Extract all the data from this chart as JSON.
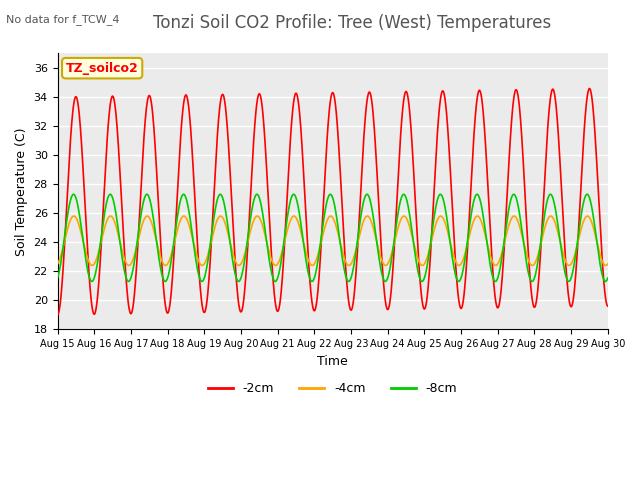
{
  "title": "Tonzi Soil CO2 Profile: Tree (West) Temperatures",
  "subtitle": "No data for f_TCW_4",
  "xlabel": "Time",
  "ylabel": "Soil Temperature (C)",
  "legend_label": "TZ_soilco2",
  "ylim": [
    18,
    37
  ],
  "yticks": [
    18,
    20,
    22,
    24,
    26,
    28,
    30,
    32,
    34,
    36
  ],
  "xtick_labels": [
    "Aug 15",
    "Aug 16",
    "Aug 17",
    "Aug 18",
    "Aug 19",
    "Aug 20",
    "Aug 21",
    "Aug 22",
    "Aug 23",
    "Aug 24",
    "Aug 25",
    "Aug 26",
    "Aug 27",
    "Aug 28",
    "Aug 29",
    "Aug 30"
  ],
  "n_days": 15,
  "series": {
    "2cm": {
      "color": "#ff0000",
      "label": "-2cm"
    },
    "4cm": {
      "color": "#ffa500",
      "label": "-4cm"
    },
    "8cm": {
      "color": "#00cc00",
      "label": "-8cm"
    }
  },
  "background_color": "#ffffff",
  "plot_bg_color": "#ebebeb",
  "grid_color": "#ffffff",
  "title_fontsize": 12,
  "axis_label_fontsize": 9,
  "tick_fontsize": 8
}
